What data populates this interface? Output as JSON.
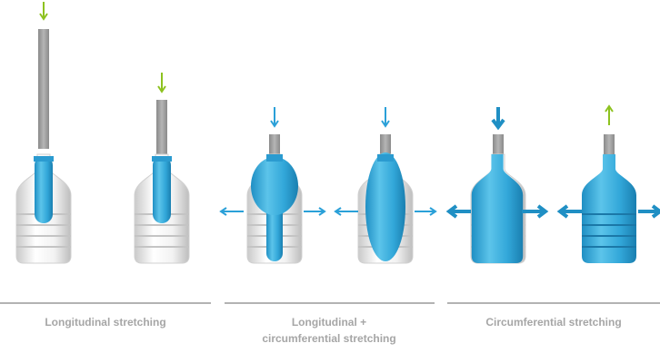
{
  "sections": [
    {
      "label_lines": [
        "Longitudinal stretching"
      ]
    },
    {
      "label_lines": [
        "Longitudinal +",
        "circumferential stretching"
      ]
    },
    {
      "label_lines": [
        "Circumferential stretching"
      ]
    }
  ]
}
